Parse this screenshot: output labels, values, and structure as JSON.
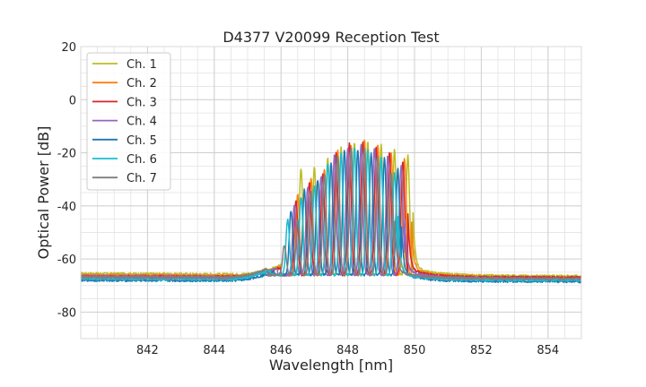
{
  "chart_data": {
    "type": "line",
    "title": "D4377 V20099 Reception Test",
    "xlabel": "Wavelength [nm]",
    "ylabel": "Optical Power [dB]",
    "xlim": [
      840,
      855
    ],
    "ylim": [
      -90,
      20
    ],
    "xticks": [
      842,
      844,
      846,
      848,
      850,
      852,
      854
    ],
    "yticks": [
      20,
      0,
      -20,
      -40,
      -60,
      -80
    ],
    "x_minor_step": 0.5,
    "y_minor_step": 5,
    "grid": true,
    "legend_position": "upper-left",
    "series": [
      {
        "name": "Ch. 1",
        "color": "#bcbd22",
        "floor_left": -65.5,
        "floor_right": -66.5,
        "edge_left": 846.0,
        "edge_right": 849.95,
        "peak_start": 846.6,
        "peak_step": 0.4,
        "peaks": [
          -26,
          -25,
          -22,
          -18,
          -16,
          -16,
          -17,
          -19,
          -21
        ]
      },
      {
        "name": "Ch. 2",
        "color": "#ff7f0e",
        "floor_left": -66.0,
        "floor_right": -67.0,
        "edge_left": 846.0,
        "edge_right": 849.9,
        "peak_start": 846.5,
        "peak_step": 0.4,
        "peaks": [
          -36,
          -30,
          -26,
          -19,
          -17,
          -15,
          -17,
          -20,
          -22
        ]
      },
      {
        "name": "Ch. 3",
        "color": "#d62728",
        "floor_left": -66.5,
        "floor_right": -67.0,
        "edge_left": 846.0,
        "edge_right": 849.8,
        "peak_start": 846.45,
        "peak_step": 0.4,
        "peaks": [
          -38,
          -31,
          -28,
          -20,
          -16,
          -16,
          -18,
          -20,
          -23
        ]
      },
      {
        "name": "Ch. 4",
        "color": "#9467bd",
        "floor_left": -66.5,
        "floor_right": -67.5,
        "edge_left": 845.9,
        "edge_right": 849.7,
        "peak_start": 846.4,
        "peak_step": 0.4,
        "peaks": [
          -40,
          -33,
          -29,
          -21,
          -18,
          -17,
          -18,
          -21,
          -25
        ]
      },
      {
        "name": "Ch. 5",
        "color": "#1f77b4",
        "floor_left": -68.0,
        "floor_right": -68.5,
        "edge_left": 845.8,
        "edge_right": 849.6,
        "peak_start": 846.3,
        "peak_step": 0.4,
        "peaks": [
          -42,
          -34,
          -30,
          -24,
          -19,
          -19,
          -20,
          -22,
          -26
        ]
      },
      {
        "name": "Ch. 6",
        "color": "#17becf",
        "floor_left": -67.5,
        "floor_right": -68.0,
        "edge_left": 845.7,
        "edge_right": 849.5,
        "peak_start": 846.2,
        "peak_step": 0.4,
        "peaks": [
          -45,
          -37,
          -32,
          -24,
          -20,
          -18,
          -19,
          -22,
          -27
        ]
      },
      {
        "name": "Ch. 7",
        "color": "#7f7f7f",
        "floor_left": -67.0,
        "floor_right": -67.5,
        "edge_left": 845.6,
        "edge_right": 849.4,
        "peak_start": 846.1,
        "peak_step": 0.4,
        "peaks": [
          -55,
          -45,
          -35,
          -28,
          -21,
          -18,
          -18,
          -21,
          -28
        ]
      }
    ]
  }
}
